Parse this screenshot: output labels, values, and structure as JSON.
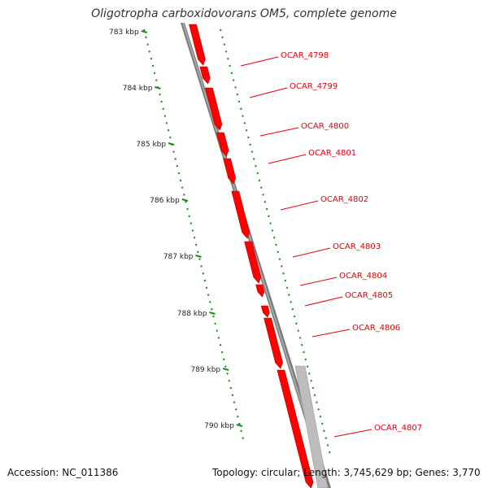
{
  "title": "Oligotropha carboxidovorans OM5, complete genome",
  "footer": {
    "accession": "Accession: NC_011386",
    "stats": "Topology: circular; Length: 3,745,629 bp; Genes: 3,770"
  },
  "colors": {
    "forward_gene": "#ff0000",
    "reverse_gene": "#ff0000",
    "other_feature": "#bdbdbd",
    "backbone": "#7a7a7a",
    "tick": "#1b8a1b",
    "label": "#e8000b"
  },
  "kbp_markers": [
    "783 kbp",
    "784 kbp",
    "785 kbp",
    "786 kbp",
    "787 kbp",
    "788 kbp",
    "789 kbp",
    "790 kbp"
  ],
  "genes": [
    {
      "name": "OCAR_4798"
    },
    {
      "name": "OCAR_4799"
    },
    {
      "name": "OCAR_4800"
    },
    {
      "name": "OCAR_4801"
    },
    {
      "name": "OCAR_4802"
    },
    {
      "name": "OCAR_4803"
    },
    {
      "name": "OCAR_4804"
    },
    {
      "name": "OCAR_4805"
    },
    {
      "name": "OCAR_4806"
    },
    {
      "name": "OCAR_4807"
    }
  ]
}
